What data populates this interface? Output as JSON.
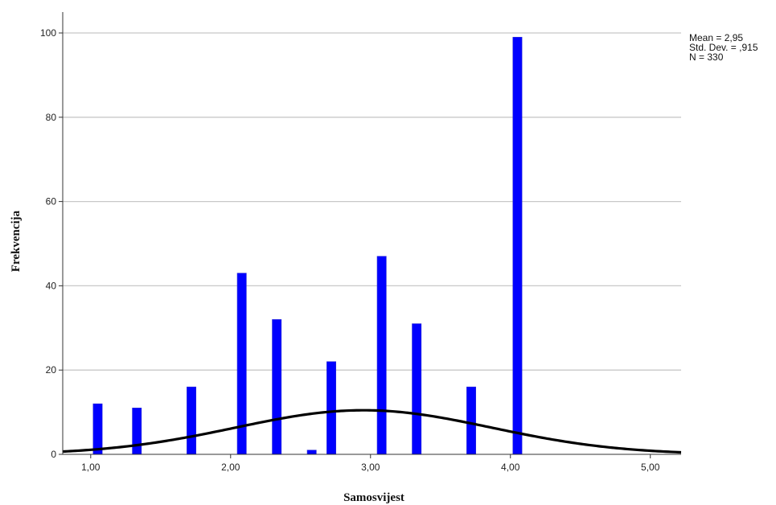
{
  "chart_data": {
    "type": "bar",
    "xlabel": "Samosvijest",
    "ylabel": "Frekvencija",
    "xlim": [
      0.8,
      5.22
    ],
    "ylim": [
      0,
      100
    ],
    "x_ticks": [
      1.0,
      2.0,
      3.0,
      4.0,
      5.0
    ],
    "x_tick_labels": [
      "1,00",
      "2,00",
      "3,00",
      "4,00",
      "5,00"
    ],
    "y_ticks": [
      0,
      20,
      40,
      60,
      80,
      100
    ],
    "y_tick_labels": [
      "0",
      "20",
      "40",
      "60",
      "80",
      "100"
    ],
    "bar_width": 0.065,
    "bars": [
      {
        "x": 1.05,
        "value": 12
      },
      {
        "x": 1.33,
        "value": 11
      },
      {
        "x": 1.72,
        "value": 16
      },
      {
        "x": 2.08,
        "value": 43
      },
      {
        "x": 2.33,
        "value": 32
      },
      {
        "x": 2.58,
        "value": 1
      },
      {
        "x": 2.72,
        "value": 22
      },
      {
        "x": 3.08,
        "value": 47
      },
      {
        "x": 3.33,
        "value": 31
      },
      {
        "x": 3.72,
        "value": 16
      },
      {
        "x": 4.05,
        "value": 99
      }
    ],
    "bar_color": "#0000ff",
    "grid": "horizontal",
    "normal_curve": {
      "mean": 2.95,
      "sd": 0.915,
      "n": 330,
      "bin_width": 0.0727,
      "color": "#000000"
    },
    "stats_lines": [
      "Mean = 2,95",
      "Std. Dev. = ,915",
      "N = 330"
    ],
    "stats_position": "top-right"
  }
}
